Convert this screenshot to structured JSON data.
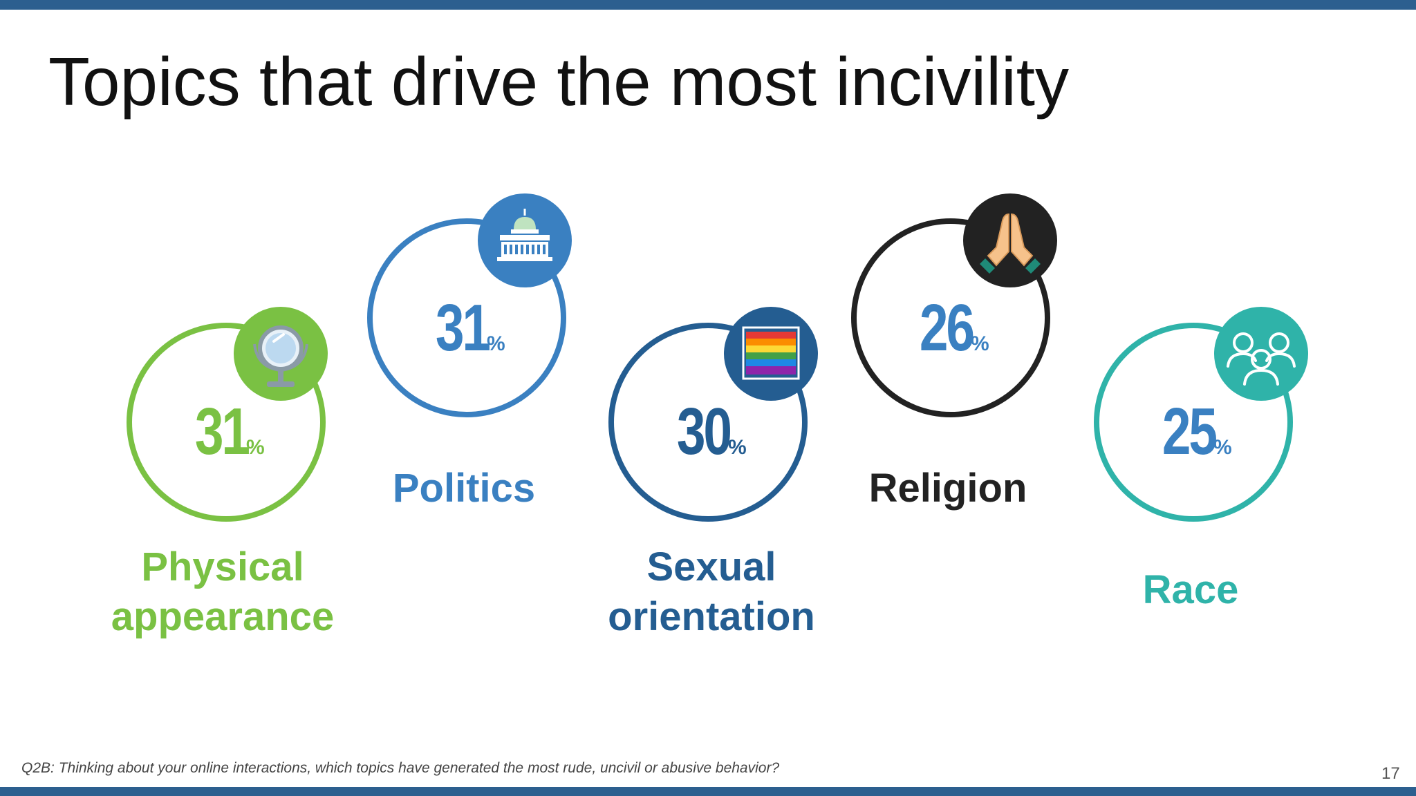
{
  "title": "Topics that drive the most incivility",
  "footnote": "Q2B: Thinking about your online interactions, which topics have generated the most rude, uncivil or abusive behavior?",
  "page_number": "17",
  "topics": [
    {
      "label_line1": "Physical",
      "label_line2": "appearance",
      "value": "31",
      "unit": "%",
      "color": "#7ac143",
      "icon": "mirror-icon"
    },
    {
      "label_line1": "Politics",
      "label_line2": "",
      "value": "31",
      "unit": "%",
      "color": "#3a80c1",
      "icon": "capitol-building-icon"
    },
    {
      "label_line1": "Sexual",
      "label_line2": "orientation",
      "value": "30",
      "unit": "%",
      "color": "#245d91",
      "icon": "rainbow-flag-icon"
    },
    {
      "label_line1": "Religion",
      "label_line2": "",
      "value": "26",
      "unit": "%",
      "color": "#222222",
      "icon": "praying-hands-icon"
    },
    {
      "label_line1": "Race",
      "label_line2": "",
      "value": "25",
      "unit": "%",
      "color": "#2fb3a9",
      "icon": "people-icon"
    }
  ]
}
